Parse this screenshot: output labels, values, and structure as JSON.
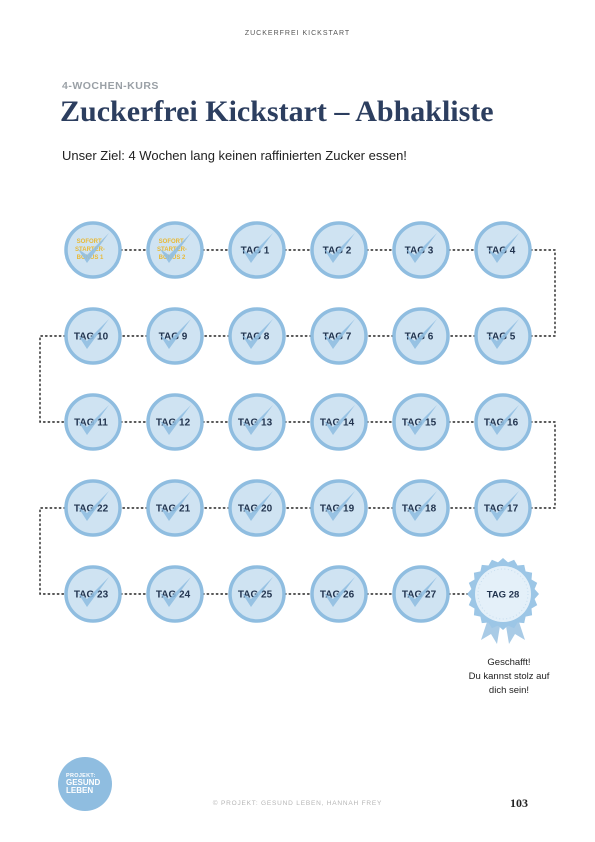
{
  "header": {
    "running_head": "ZUCKERFREI KICKSTART"
  },
  "kicker": "4-WOCHEN-KURS",
  "title": "Zuckerfrei Kickstart – Abhakliste",
  "subtitle": "Unser Ziel: 4 Wochen lang keinen raffinierten Zucker essen!",
  "tracker": {
    "bonus_days": [
      {
        "lines": [
          "SOFORT-",
          "STARTER-",
          "BONUS 1"
        ]
      },
      {
        "lines": [
          "SOFORT-",
          "STARTER-",
          "BONUS 2"
        ]
      }
    ],
    "days": [
      "TAG 1",
      "TAG 2",
      "TAG 3",
      "TAG 4",
      "TAG 5",
      "TAG 6",
      "TAG 7",
      "TAG 8",
      "TAG 9",
      "TAG 10",
      "TAG 11",
      "TAG 12",
      "TAG 13",
      "TAG 14",
      "TAG 15",
      "TAG 16",
      "TAG 17",
      "TAG 18",
      "TAG 19",
      "TAG 20",
      "TAG 21",
      "TAG 22",
      "TAG 23",
      "TAG 24",
      "TAG 25",
      "TAG 26",
      "TAG 27"
    ],
    "final_day": "TAG 28",
    "completion_message": [
      "Geschafft!",
      "Du kannst stolz auf",
      "dich sein!"
    ]
  },
  "colors": {
    "badge_fill": "#cfe3f2",
    "badge_ring": "#8fbde0",
    "check": "#8fbde0",
    "title": "#2c3e5f",
    "bonus_text": "#e8b936"
  },
  "logo": {
    "line1": "PROJEKT:",
    "line2": "GESUND",
    "line3": "LEBEN"
  },
  "footer": {
    "credit": "© PROJEKT: GESUND LEBEN, HANNAH FREY",
    "page_number": "103"
  }
}
